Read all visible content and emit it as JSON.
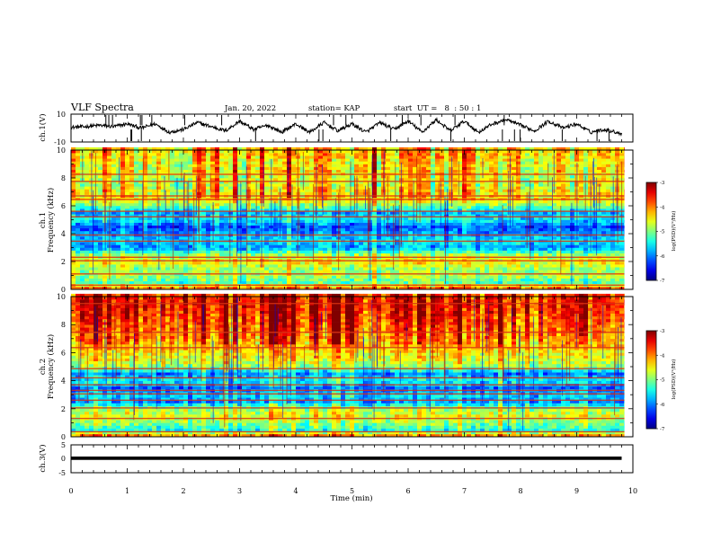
{
  "header": {
    "title": "VLF Spectra",
    "date": "Jan. 20, 2022",
    "station": "station= KAP",
    "start": "start  UT =   8  : 50 : 1"
  },
  "chart_data": [
    {
      "id": "ch1-waveform",
      "type": "line",
      "ylabel": "ch.1(V)",
      "ylim": [
        -10,
        10
      ],
      "y_tick_labels": [
        "10",
        "-10"
      ],
      "xlim": [
        0,
        10
      ],
      "x": [
        0,
        0.25,
        0.5,
        0.75,
        1.0,
        1.25,
        1.5,
        1.75,
        2.0,
        2.25,
        2.5,
        2.75,
        3.0,
        3.25,
        3.5,
        3.75,
        4.0,
        4.25,
        4.5,
        4.75,
        5.0,
        5.25,
        5.5,
        5.75,
        6.0,
        6.25,
        6.5,
        6.75,
        7.0,
        7.25,
        7.5,
        7.75,
        8.0,
        8.25,
        8.5,
        8.75,
        9.0,
        9.25,
        9.5,
        9.8
      ],
      "y": [
        0.5,
        1,
        2,
        1,
        3,
        0,
        3,
        -3,
        -1,
        4,
        1,
        -2,
        5,
        -1,
        2,
        -3,
        3,
        -3,
        4,
        -2,
        3,
        -3,
        4,
        -1,
        5,
        -3,
        6,
        -2,
        5,
        -3,
        3,
        6,
        2,
        -2,
        5,
        0,
        3,
        -3,
        -1,
        -4
      ]
    },
    {
      "id": "ch1-spectrogram",
      "type": "heatmap",
      "ylabel": "ch.1",
      "ylabel2": "Frequency (kHz)",
      "ylim": [
        0,
        10
      ],
      "y_tick_labels": [
        "0",
        "2",
        "4",
        "6",
        "8",
        "10"
      ],
      "xlim": [
        0,
        9.85
      ],
      "colorbar": {
        "label": "log(PSD)(V²/Hz)",
        "min": -7,
        "max": -3,
        "tick_labels": [
          "-3",
          "-4",
          "-5",
          "-6",
          "-7"
        ]
      },
      "band_profile_khz": [
        0,
        0.5,
        1,
        1.5,
        2,
        2.5,
        3,
        3.5,
        4,
        4.5,
        5,
        5.5,
        6,
        6.5,
        7,
        7.5,
        8,
        8.5,
        9,
        9.5,
        10
      ],
      "band_profile_level": [
        -3.6,
        -5.2,
        -4.8,
        -4.9,
        -4.4,
        -4.9,
        -5.9,
        -5.6,
        -5.9,
        -6.2,
        -5.5,
        -5.8,
        -5.0,
        -4.4,
        -4.4,
        -4.6,
        -4.6,
        -4.4,
        -4.5,
        -4.3,
        -4.3
      ],
      "line_khz": [
        0.3,
        1.1,
        2.05,
        2.3,
        3.45,
        3.9,
        5.2,
        5.6,
        6.45,
        6.7,
        7.75,
        8.25
      ]
    },
    {
      "id": "ch2-spectrogram",
      "type": "heatmap",
      "ylabel": "ch.2",
      "ylabel2": "Frequency (kHz)",
      "ylim": [
        0,
        10
      ],
      "y_tick_labels": [
        "0",
        "2",
        "4",
        "6",
        "8",
        "10"
      ],
      "xlim": [
        0,
        9.85
      ],
      "colorbar": {
        "label": "log(PSD)(V²/Hz)",
        "min": -7,
        "max": -3,
        "tick_labels": [
          "-3",
          "-4",
          "-5",
          "-6",
          "-7"
        ]
      },
      "band_profile_khz": [
        0,
        0.5,
        1,
        1.5,
        2,
        2.5,
        3,
        3.5,
        4,
        4.5,
        5,
        5.5,
        6,
        6.5,
        7,
        7.5,
        8,
        8.5,
        9,
        9.5,
        10
      ],
      "band_profile_level": [
        -3.8,
        -5.4,
        -5.0,
        -4.6,
        -4.9,
        -5.9,
        -5.7,
        -6.1,
        -5.5,
        -6.0,
        -4.9,
        -4.6,
        -4.5,
        -4.2,
        -4.0,
        -3.9,
        -3.8,
        -3.7,
        -3.6,
        -3.5,
        -3.6
      ],
      "line_khz": [
        0.35,
        1.3,
        2.05,
        2.6,
        3.05,
        3.3,
        3.7,
        4.2,
        4.85,
        6.35,
        7.45,
        9.5
      ]
    },
    {
      "id": "ch3-waveform",
      "type": "line",
      "ylabel": "ch.3(V)",
      "ylim": [
        -5,
        5
      ],
      "y_tick_labels": [
        "5",
        "0",
        "-5"
      ],
      "xlim": [
        0,
        10
      ],
      "x": [
        0,
        9.8
      ],
      "y": [
        0.2,
        0.2
      ],
      "band_ylim": [
        -0.4,
        0.8
      ]
    }
  ],
  "x_axis": {
    "label": "Time (min)",
    "tick_labels": [
      "0",
      "1",
      "2",
      "3",
      "4",
      "5",
      "6",
      "7",
      "8",
      "9",
      "10"
    ]
  }
}
